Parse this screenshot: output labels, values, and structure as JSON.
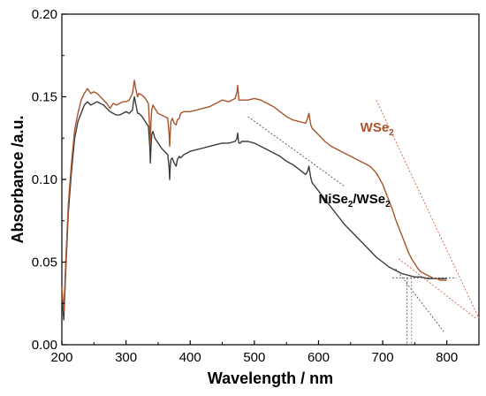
{
  "chart_data": {
    "type": "line",
    "xlabel": "Wavelength / nm",
    "ylabel": "Absorbance /a.u.",
    "xlim": [
      200,
      850
    ],
    "ylim": [
      0,
      0.2
    ],
    "x_ticks": [
      200,
      300,
      400,
      500,
      600,
      700,
      800
    ],
    "y_ticks": [
      0.0,
      0.05,
      0.1,
      0.15,
      0.2
    ],
    "y_tick_labels": [
      "0.00",
      "0.05",
      "0.10",
      "0.15",
      "0.20"
    ],
    "grid": false,
    "colors": {
      "WSe2": "#a8542a",
      "NiSe2/WSe2": "#3c3c3c",
      "tangent_WSe2": "#d06040",
      "tangent_NiSe2": "#505050"
    },
    "series": [
      {
        "name": "WSe2",
        "x": [
          200,
          203,
          206,
          210,
          215,
          220,
          225,
          230,
          235,
          240,
          245,
          250,
          255,
          260,
          265,
          270,
          275,
          280,
          285,
          290,
          295,
          300,
          305,
          310,
          312,
          313,
          315,
          318,
          320,
          325,
          330,
          335,
          337,
          338,
          339,
          340,
          342,
          345,
          350,
          355,
          360,
          365,
          367,
          368,
          369,
          370,
          372,
          375,
          378,
          380,
          383,
          385,
          390,
          400,
          410,
          420,
          430,
          440,
          450,
          460,
          470,
          473,
          474,
          475,
          476,
          478,
          480,
          490,
          500,
          510,
          520,
          530,
          540,
          550,
          560,
          570,
          580,
          583,
          585,
          588,
          590,
          600,
          610,
          620,
          630,
          640,
          650,
          660,
          670,
          680,
          690,
          700,
          705,
          710,
          715,
          720,
          725,
          730,
          735,
          740,
          745,
          750,
          755,
          760,
          765,
          770,
          775,
          780,
          785,
          790,
          795,
          800
        ],
        "values": [
          0.035,
          0.02,
          0.05,
          0.085,
          0.11,
          0.13,
          0.14,
          0.148,
          0.152,
          0.155,
          0.152,
          0.153,
          0.152,
          0.15,
          0.148,
          0.146,
          0.143,
          0.146,
          0.145,
          0.146,
          0.147,
          0.147,
          0.148,
          0.152,
          0.157,
          0.16,
          0.155,
          0.15,
          0.152,
          0.151,
          0.149,
          0.146,
          0.13,
          0.122,
          0.135,
          0.142,
          0.145,
          0.143,
          0.14,
          0.139,
          0.138,
          0.137,
          0.128,
          0.12,
          0.128,
          0.135,
          0.137,
          0.134,
          0.133,
          0.136,
          0.137,
          0.14,
          0.141,
          0.141,
          0.142,
          0.143,
          0.144,
          0.146,
          0.148,
          0.147,
          0.149,
          0.153,
          0.157,
          0.152,
          0.148,
          0.148,
          0.148,
          0.148,
          0.149,
          0.148,
          0.146,
          0.144,
          0.141,
          0.138,
          0.136,
          0.135,
          0.134,
          0.137,
          0.14,
          0.133,
          0.131,
          0.127,
          0.123,
          0.12,
          0.118,
          0.116,
          0.114,
          0.112,
          0.11,
          0.108,
          0.104,
          0.097,
          0.092,
          0.087,
          0.082,
          0.076,
          0.071,
          0.066,
          0.061,
          0.056,
          0.052,
          0.049,
          0.046,
          0.044,
          0.043,
          0.042,
          0.041,
          0.04,
          0.04,
          0.039,
          0.039,
          0.039
        ]
      },
      {
        "name": "NiSe2/WSe2",
        "x": [
          200,
          203,
          206,
          210,
          215,
          220,
          225,
          230,
          235,
          240,
          245,
          250,
          255,
          260,
          265,
          270,
          275,
          280,
          285,
          290,
          295,
          300,
          305,
          310,
          312,
          313,
          315,
          318,
          320,
          325,
          330,
          335,
          337,
          338,
          339,
          340,
          342,
          345,
          350,
          355,
          360,
          365,
          367,
          368,
          369,
          370,
          372,
          375,
          378,
          380,
          383,
          385,
          390,
          400,
          410,
          420,
          430,
          440,
          450,
          460,
          470,
          473,
          474,
          475,
          476,
          478,
          480,
          490,
          500,
          510,
          520,
          530,
          540,
          550,
          560,
          570,
          580,
          583,
          585,
          588,
          590,
          600,
          610,
          620,
          630,
          640,
          650,
          660,
          670,
          680,
          690,
          700,
          710,
          720,
          730,
          740,
          750,
          760,
          770,
          780,
          790,
          800
        ],
        "values": [
          0.03,
          0.015,
          0.045,
          0.08,
          0.105,
          0.125,
          0.135,
          0.14,
          0.145,
          0.147,
          0.145,
          0.146,
          0.147,
          0.146,
          0.145,
          0.143,
          0.141,
          0.14,
          0.139,
          0.139,
          0.14,
          0.141,
          0.14,
          0.142,
          0.148,
          0.15,
          0.146,
          0.14,
          0.14,
          0.138,
          0.135,
          0.132,
          0.12,
          0.11,
          0.12,
          0.127,
          0.129,
          0.125,
          0.122,
          0.119,
          0.117,
          0.115,
          0.108,
          0.1,
          0.108,
          0.112,
          0.113,
          0.11,
          0.108,
          0.112,
          0.114,
          0.113,
          0.115,
          0.117,
          0.118,
          0.119,
          0.12,
          0.121,
          0.122,
          0.122,
          0.123,
          0.125,
          0.128,
          0.124,
          0.122,
          0.122,
          0.123,
          0.123,
          0.122,
          0.12,
          0.118,
          0.116,
          0.114,
          0.111,
          0.109,
          0.106,
          0.103,
          0.105,
          0.108,
          0.101,
          0.098,
          0.093,
          0.088,
          0.083,
          0.078,
          0.073,
          0.069,
          0.065,
          0.061,
          0.057,
          0.053,
          0.05,
          0.047,
          0.045,
          0.043,
          0.042,
          0.041,
          0.041,
          0.04,
          0.04,
          0.04,
          0.04
        ]
      }
    ],
    "annotations": [
      {
        "text": "WSe",
        "sub": "2",
        "x": 665,
        "y": 0.129,
        "color": "#a8542a"
      },
      {
        "text": "NiSe",
        "sub": "2",
        "text2": "/WSe",
        "sub2": "2",
        "x": 600,
        "y": 0.0855,
        "color": "#000000"
      }
    ],
    "tangent_lines": [
      {
        "x": [
          690,
          850
        ],
        "y": [
          0.148,
          0.016
        ],
        "color": "#d06040"
      },
      {
        "x": [
          725,
          845
        ],
        "y": [
          0.052,
          0.016
        ],
        "color": "#d06040"
      },
      {
        "x": [
          490,
          640
        ],
        "y": [
          0.138,
          0.096
        ],
        "color": "#505050"
      },
      {
        "x": [
          720,
          795
        ],
        "y": [
          0.046,
          0.008
        ],
        "color": "#505050"
      },
      {
        "x": [
          715,
          815
        ],
        "y": [
          0.0405,
          0.0405
        ],
        "color": "#505050"
      },
      {
        "x": [
          738,
          738
        ],
        "y": [
          0.0405,
          0.0
        ],
        "color": "#505050"
      },
      {
        "x": [
          745,
          745
        ],
        "y": [
          0.0405,
          0.0
        ],
        "color": "#d06040"
      }
    ]
  }
}
